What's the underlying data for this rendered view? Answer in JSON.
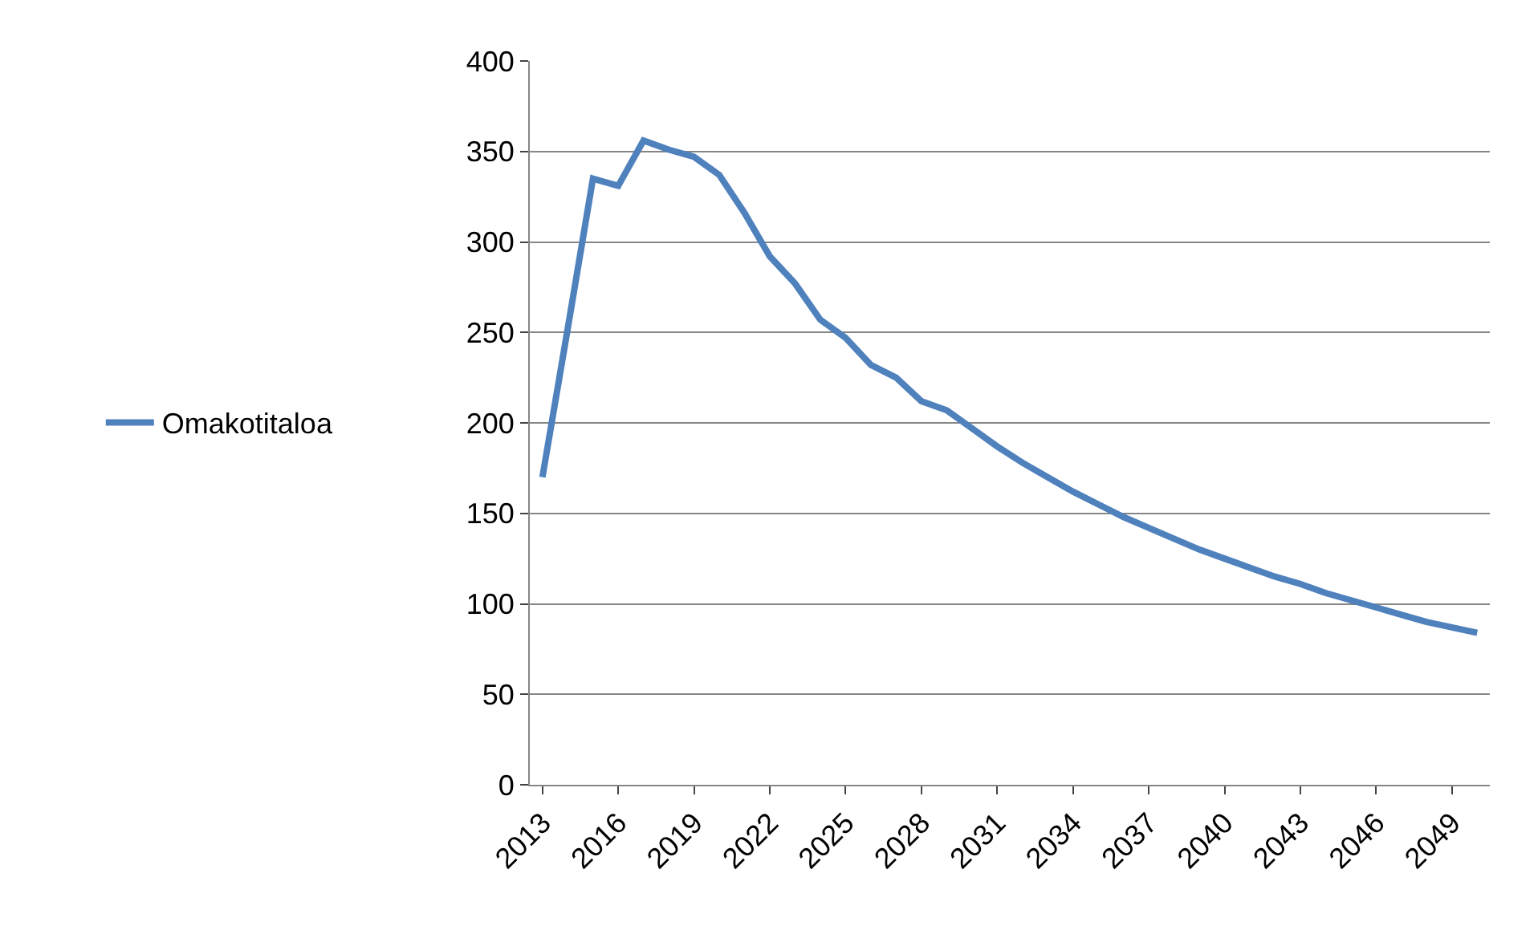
{
  "chart_data": {
    "type": "line",
    "categories": [
      "2013",
      null,
      null,
      "2016",
      null,
      null,
      "2019",
      null,
      null,
      "2022",
      null,
      null,
      "2025",
      null,
      null,
      "2028",
      null,
      null,
      "2031",
      null,
      null,
      "2034",
      null,
      null,
      "2037",
      null,
      null,
      "2040",
      null,
      null,
      "2043",
      null,
      null,
      "2046",
      null,
      null,
      "2049",
      null
    ],
    "series": [
      {
        "name": "Omakotitaloa",
        "color": "#4f81bd",
        "values": [
          170,
          252,
          335,
          331,
          356,
          351,
          347,
          337,
          316,
          292,
          277,
          257,
          247,
          232,
          225,
          212,
          207,
          197,
          187,
          178,
          170,
          162,
          155,
          148,
          142,
          136,
          130,
          125,
          120,
          115,
          111,
          106,
          102,
          98,
          94,
          90,
          87,
          84
        ]
      }
    ],
    "ylim": [
      0,
      400
    ],
    "yticks": [
      0,
      50,
      100,
      150,
      200,
      250,
      300,
      350,
      400
    ],
    "grid": "y",
    "legend": "left",
    "marker": "none",
    "line_style": "solid"
  }
}
